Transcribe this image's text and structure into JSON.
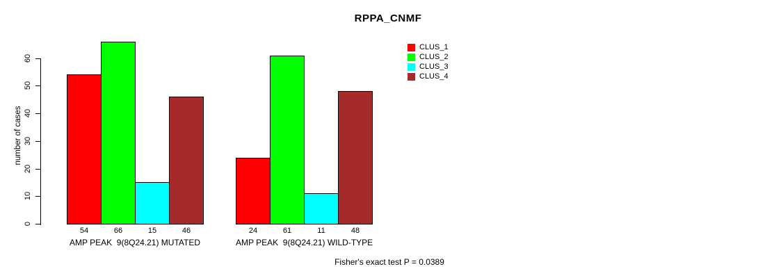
{
  "chart_data": {
    "type": "bar",
    "title": "RPPA_CNMF",
    "ylabel": "number of cases",
    "xlabel": "",
    "ylim": [
      0,
      66
    ],
    "yticks": [
      0,
      10,
      20,
      30,
      40,
      50,
      60
    ],
    "grid": false,
    "legend_position": "top-right",
    "categories": [
      "AMP PEAK  9(8Q24.21) MUTATED",
      "AMP PEAK  9(8Q24.21) WILD-TYPE"
    ],
    "series": [
      {
        "name": "CLUS_1",
        "color": "#FF0000",
        "values": [
          54,
          24
        ]
      },
      {
        "name": "CLUS_2",
        "color": "#00FF00",
        "values": [
          66,
          61
        ]
      },
      {
        "name": "CLUS_3",
        "color": "#00FFFF",
        "values": [
          15,
          11
        ]
      },
      {
        "name": "CLUS_4",
        "color": "#A52A2A",
        "values": [
          46,
          48
        ]
      }
    ],
    "bar_value_labels": {
      "group1": [
        54,
        66,
        15,
        46
      ],
      "group2": [
        24,
        61,
        11,
        48
      ]
    },
    "annotation": "Fisher's exact test P = 0.0389"
  }
}
